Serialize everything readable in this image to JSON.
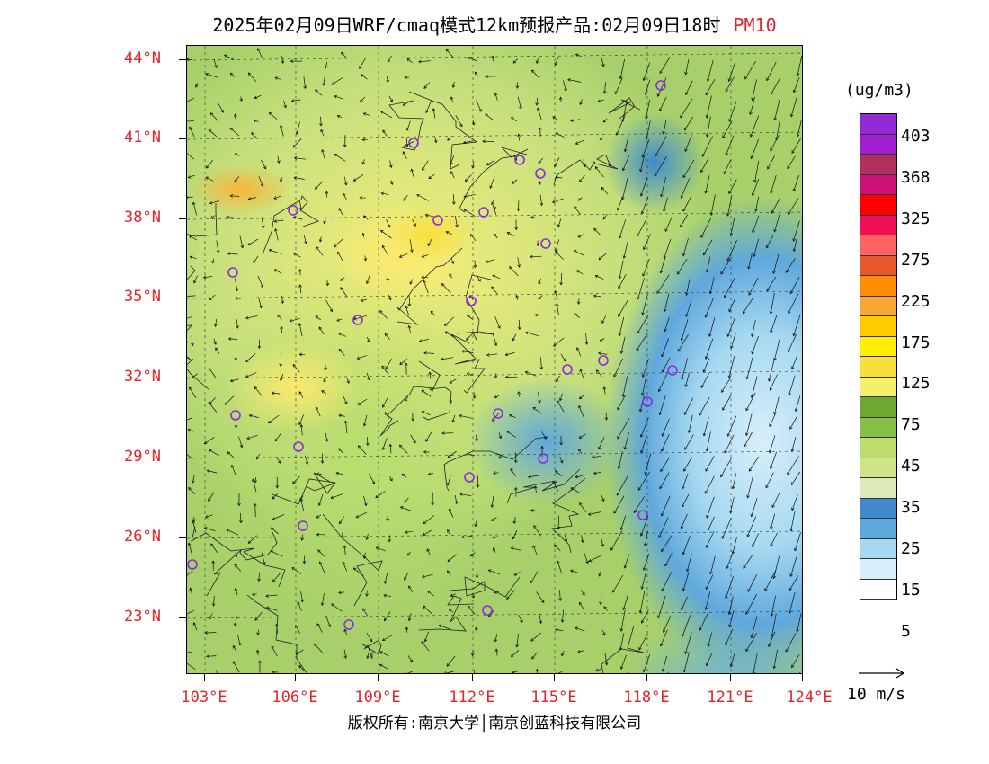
{
  "title": {
    "main": "2025年02月09日WRF/cmaq模式12km预报产品:02月09日18时",
    "product": "PM10"
  },
  "map": {
    "lat_labels": [
      "44°N",
      "41°N",
      "38°N",
      "35°N",
      "32°N",
      "29°N",
      "26°N",
      "23°N"
    ],
    "lon_labels": [
      "103°E",
      "106°E",
      "109°E",
      "112°E",
      "115°E",
      "118°E",
      "121°E",
      "124°E"
    ],
    "colors": {
      "label": "#e8222a",
      "city_marker": "#8a2be2"
    }
  },
  "legend": {
    "unit": "(ug/m3)",
    "levels": [
      "403",
      "368",
      "325",
      "275",
      "225",
      "175",
      "125",
      "75",
      "45",
      "35",
      "25",
      "15",
      "5"
    ],
    "colors": [
      "#8f2ad6",
      "#a020d0",
      "#b03060",
      "#cc1177",
      "#ff0000",
      "#ee1155",
      "#ff6060",
      "#e8572a",
      "#ff8c00",
      "#f8a830",
      "#ffcc00",
      "#ffee00",
      "#f7df3c",
      "#f4f06c",
      "#6fa833",
      "#86c04a",
      "#bcdd6b",
      "#cde488",
      "#ddeab8",
      "#3f8bcc",
      "#5fa8dc",
      "#a6d9f1",
      "#d8effa",
      "#ffffff"
    ]
  },
  "wind_scale": {
    "label": "10 m/s"
  },
  "copyright": "版权所有:南京大学│南京创蓝科技有限公司"
}
